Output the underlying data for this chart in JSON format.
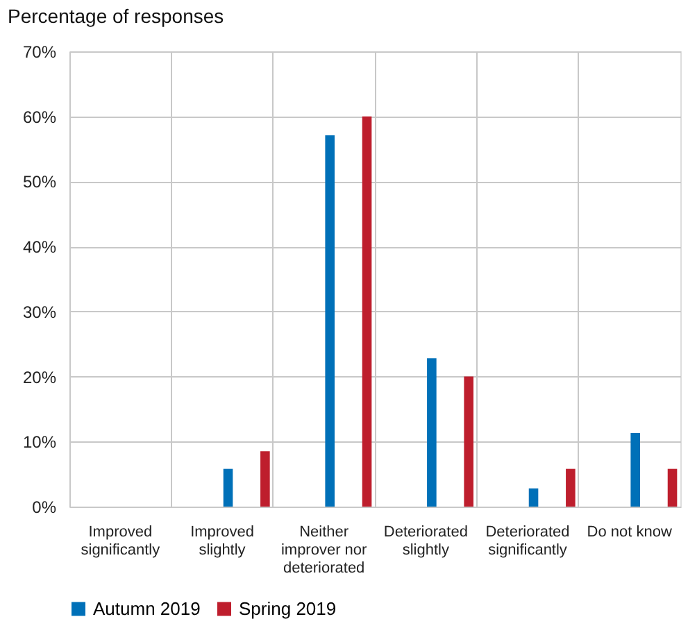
{
  "chart_data": {
    "type": "bar",
    "ylabel": "Percentage of responses",
    "categories": [
      "Improved significantly",
      "Improved slightly",
      "Neither improver nor deteriorated",
      "Deteriorated slightly",
      "Deteriorated significantly",
      "Do not know"
    ],
    "series": [
      {
        "name": "Autumn 2019",
        "color": "#0070b8",
        "values": [
          0,
          5.8,
          57.1,
          22.8,
          2.8,
          11.3
        ]
      },
      {
        "name": "Spring 2019",
        "color": "#be1e2d",
        "values": [
          0,
          8.5,
          60,
          20,
          5.8,
          5.8
        ]
      }
    ],
    "ylim": [
      0,
      70
    ],
    "yticks": [
      {
        "value": 0,
        "label": "0%"
      },
      {
        "value": 10,
        "label": "10%"
      },
      {
        "value": 20,
        "label": "20%"
      },
      {
        "value": 30,
        "label": "30%"
      },
      {
        "value": 40,
        "label": "40%"
      },
      {
        "value": 50,
        "label": "50%"
      },
      {
        "value": 60,
        "label": "60%"
      },
      {
        "value": 70,
        "label": "70%"
      }
    ],
    "grid": true,
    "legend": "bottom"
  }
}
